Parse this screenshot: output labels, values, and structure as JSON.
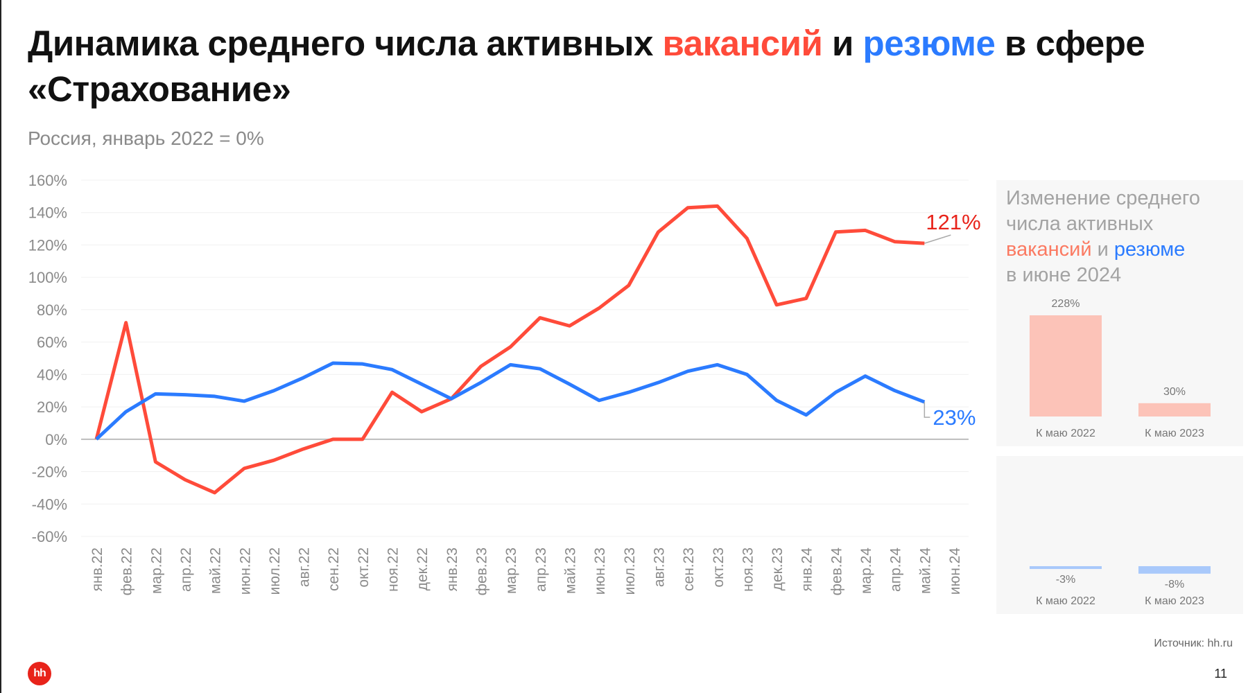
{
  "title": {
    "part1": "Динамика среднего числа активных ",
    "vacancies": "вакансий",
    "and": " и ",
    "resumes": "резюме",
    "part2": " в сфере «Страхование»"
  },
  "subtitle": "Россия, январь 2022 = 0%",
  "colors": {
    "vacancies": "#ff4b3a",
    "resumes": "#2b7bff",
    "vacancies_bar": "#fcc3b8",
    "resumes_bar": "#a9c9fb",
    "vacancies_label": "#e8231a"
  },
  "chart_data": [
    {
      "type": "line",
      "x": [
        "янв.22",
        "фев.22",
        "мар.22",
        "апр.22",
        "май.22",
        "июн.22",
        "июл.22",
        "авг.22",
        "сен.22",
        "окт.22",
        "ноя.22",
        "дек.22",
        "янв.23",
        "фев.23",
        "мар.23",
        "апр.23",
        "май.23",
        "июн.23",
        "июл.23",
        "авг.23",
        "сен.23",
        "окт.23",
        "ноя.23",
        "дек.23",
        "янв.24",
        "фев.24",
        "мар.24",
        "апр.24",
        "май.24",
        "июн.24"
      ],
      "series": [
        {
          "key": "vacancies",
          "values": [
            0,
            72,
            -14,
            -25,
            -33,
            -18,
            -13,
            -6,
            0,
            0,
            29,
            17,
            25,
            45,
            57,
            75,
            70,
            81,
            95,
            128,
            143,
            144,
            124,
            83,
            87,
            128,
            129,
            122,
            121,
            null
          ],
          "end_label": "121%"
        },
        {
          "key": "resumes",
          "values": [
            0,
            17,
            28,
            27.5,
            26.5,
            23.5,
            30,
            38,
            47,
            46.5,
            43,
            34,
            25,
            35,
            46,
            43.5,
            34,
            24,
            29,
            35,
            42,
            46,
            40,
            24,
            15,
            29,
            39,
            30,
            23,
            null
          ],
          "end_label": "23%"
        }
      ],
      "ylim": [
        -60,
        160
      ],
      "yticks": [
        160,
        140,
        120,
        100,
        80,
        60,
        40,
        20,
        0,
        -20,
        -40,
        -60
      ],
      "ytick_labels": [
        "160%",
        "140%",
        "120%",
        "100%",
        "80%",
        "60%",
        "40%",
        "20%",
        "0%",
        "-20%",
        "-40%",
        "-60%"
      ],
      "grid": true
    },
    {
      "type": "bar",
      "title": {
        "line1": "Изменение среднего",
        "line2": "числа активных",
        "vacancies": "вакансий",
        "and": " и ",
        "resumes": "резюме",
        "line4": "в июне 2024"
      },
      "categories": [
        "К маю 2022",
        "К маю 2023"
      ],
      "series": [
        {
          "key": "vacancies",
          "values": [
            228,
            30
          ],
          "labels": [
            "228%",
            "30%"
          ]
        },
        {
          "key": "resumes",
          "values": [
            -3,
            -8
          ],
          "labels": [
            "-3%",
            "-8%"
          ]
        }
      ]
    }
  ],
  "footer": {
    "source": "Источник: hh.ru",
    "page": "11",
    "logo": "hh"
  }
}
